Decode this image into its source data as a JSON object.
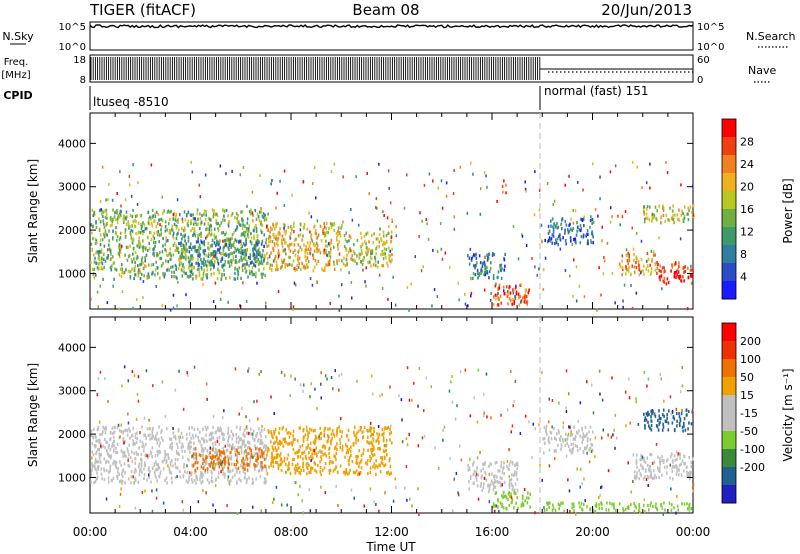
{
  "header": {
    "station": "TIGER (fitACF)",
    "beam": "Beam 08",
    "date": "20/Jun/2013"
  },
  "top_panels": {
    "nsky_label": "N.Sky",
    "nsky_ticks": [
      "10^5",
      "10^0"
    ],
    "nsearch_label": "N.Search",
    "nsearch_ticks": [
      "10^5",
      "10^0"
    ],
    "freq_label": "Freq.",
    "freq_unit": "[MHz]",
    "freq_ticks": [
      "18",
      "8"
    ],
    "nave_label": "Nave",
    "nave_ticks": [
      "60",
      "0"
    ],
    "cpid_label": "CPID",
    "cpid_segments": [
      {
        "label": "ltuseq -8510",
        "start_hour": 0,
        "end_hour": 18
      },
      {
        "label": "normal (fast) 151",
        "start_hour": 18,
        "end_hour": 24
      }
    ]
  },
  "chart_data": [
    {
      "type": "heatmap",
      "name": "power",
      "x_range_hours": [
        0,
        24
      ],
      "x_ticks": [
        "00:00",
        "04:00",
        "08:00",
        "12:00",
        "16:00",
        "20:00",
        "00:00"
      ],
      "xlabel": "Time UT",
      "ylabel": "Slant Range [km]",
      "ylim": [
        180,
        4700
      ],
      "y_ticks": [
        1000,
        2000,
        3000,
        4000
      ],
      "colorbar": {
        "label": "Power [dB]",
        "ticks": [
          4,
          8,
          12,
          16,
          20,
          24,
          28
        ],
        "range": [
          0,
          32
        ],
        "colors": [
          "#1a1aff",
          "#2a4cc8",
          "#2f7fa0",
          "#3f9a6a",
          "#6fb040",
          "#b8c820",
          "#f0b020",
          "#f08020",
          "#f04010",
          "#ff0000"
        ]
      },
      "blobs": [
        {
          "t0": 0,
          "t1": 7,
          "r0": 900,
          "r1": 2500,
          "value": 14
        },
        {
          "t0": 3.5,
          "t1": 7,
          "r0": 1200,
          "r1": 1800,
          "value": 9
        },
        {
          "t0": 7,
          "t1": 10,
          "r0": 1100,
          "r1": 2200,
          "value": 20
        },
        {
          "t0": 10,
          "t1": 12,
          "r0": 1200,
          "r1": 2000,
          "value": 18
        },
        {
          "t0": 15,
          "t1": 16.5,
          "r0": 900,
          "r1": 1500,
          "value": 8
        },
        {
          "t0": 16,
          "t1": 17.5,
          "r0": 300,
          "r1": 800,
          "value": 26
        },
        {
          "t0": 18,
          "t1": 20,
          "r0": 1700,
          "r1": 2300,
          "value": 7
        },
        {
          "t0": 21,
          "t1": 22.5,
          "r0": 1000,
          "r1": 1500,
          "value": 22
        },
        {
          "t0": 22.5,
          "t1": 24,
          "r0": 800,
          "r1": 1300,
          "value": 30
        },
        {
          "t0": 22,
          "t1": 24,
          "r0": 2200,
          "r1": 2600,
          "value": 18
        }
      ]
    },
    {
      "type": "heatmap",
      "name": "velocity",
      "x_range_hours": [
        0,
        24
      ],
      "x_ticks": [
        "00:00",
        "04:00",
        "08:00",
        "12:00",
        "16:00",
        "20:00",
        "00:00"
      ],
      "xlabel": "Time UT",
      "ylabel": "Slant Range [km]",
      "ylim": [
        180,
        4700
      ],
      "y_ticks": [
        1000,
        2000,
        3000,
        4000
      ],
      "colorbar": {
        "label": "Velocity [m s⁻¹]",
        "ticks": [
          200,
          100,
          50,
          15,
          -15,
          -50,
          -100,
          -200
        ],
        "range": [
          -250,
          250
        ],
        "colors": [
          "#2020c0",
          "#206090",
          "#3a8a3a",
          "#7ccc30",
          "#c0c0c0",
          "#c0c0c0",
          "#f0a000",
          "#f07000",
          "#f03000",
          "#ff0000"
        ]
      },
      "blobs": [
        {
          "t0": 0,
          "t1": 7,
          "r0": 900,
          "r1": 2200,
          "value": 0
        },
        {
          "t0": 4,
          "t1": 7,
          "r0": 1200,
          "r1": 1700,
          "value": 120
        },
        {
          "t0": 7,
          "t1": 12,
          "r0": 1100,
          "r1": 2200,
          "value": 60
        },
        {
          "t0": 15,
          "t1": 17,
          "r0": 700,
          "r1": 1400,
          "value": -20
        },
        {
          "t0": 16,
          "t1": 17.5,
          "r0": 300,
          "r1": 700,
          "value": -80
        },
        {
          "t0": 18,
          "t1": 24,
          "r0": 250,
          "r1": 450,
          "value": -70
        },
        {
          "t0": 18,
          "t1": 20,
          "r0": 1600,
          "r1": 2200,
          "value": 5
        },
        {
          "t0": 21.5,
          "t1": 24,
          "r0": 1000,
          "r1": 1600,
          "value": 0
        },
        {
          "t0": 22,
          "t1": 24,
          "r0": 2100,
          "r1": 2600,
          "value": -180
        }
      ]
    }
  ]
}
